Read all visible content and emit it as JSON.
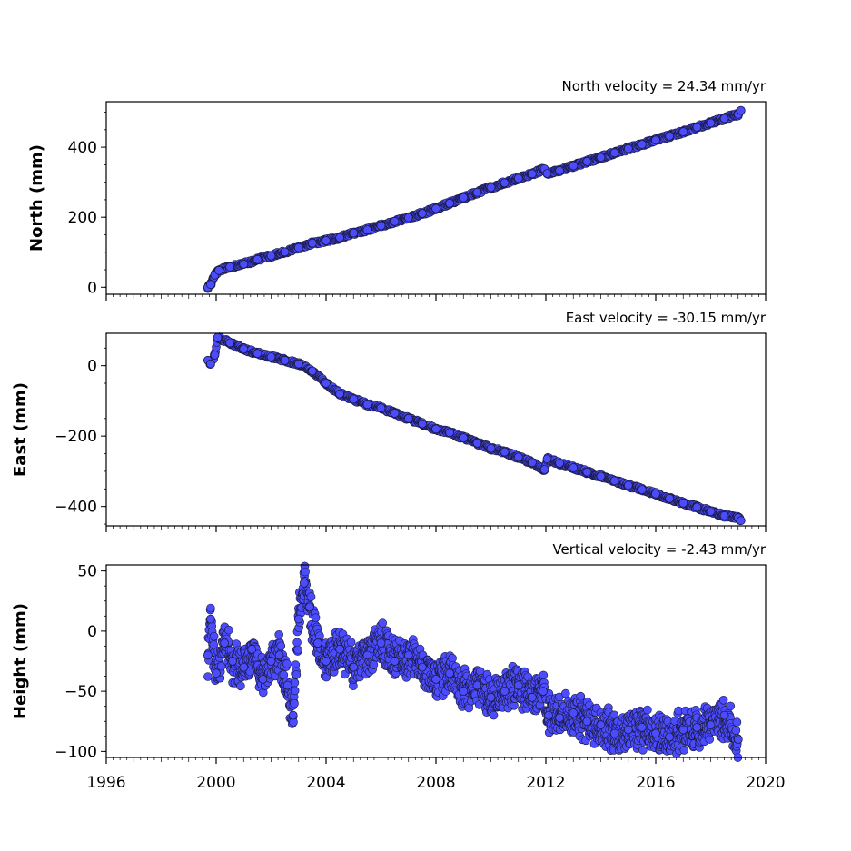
{
  "chart_data": [
    {
      "type": "scatter",
      "title": "North velocity = 24.34 mm/yr",
      "xlabel": "",
      "ylabel": "North (mm)",
      "xlim": [
        1996,
        2020
      ],
      "ylim": [
        -20,
        530
      ],
      "yticks": [
        0,
        200,
        400
      ],
      "ytick_labels": [
        "0",
        "200",
        "400"
      ],
      "color": "#4c4cff",
      "edge_color": "#1a1a40",
      "series": [
        {
          "values": [
            [
              1999.7,
              0
            ],
            [
              1999.8,
              8
            ],
            [
              1999.95,
              35
            ],
            [
              2000.1,
              48
            ],
            [
              2000.5,
              58
            ],
            [
              2001.0,
              66
            ],
            [
              2001.5,
              79
            ],
            [
              2002.0,
              90
            ],
            [
              2002.5,
              101
            ],
            [
              2003.0,
              113
            ],
            [
              2003.5,
              126
            ],
            [
              2004.0,
              133
            ],
            [
              2004.5,
              142
            ],
            [
              2005.0,
              155
            ],
            [
              2005.5,
              164
            ],
            [
              2006.0,
              176
            ],
            [
              2006.5,
              188
            ],
            [
              2007.0,
              199
            ],
            [
              2007.5,
              211
            ],
            [
              2008.0,
              225
            ],
            [
              2008.5,
              240
            ],
            [
              2009.0,
              256
            ],
            [
              2009.5,
              271
            ],
            [
              2010.0,
              285
            ],
            [
              2010.5,
              298
            ],
            [
              2011.0,
              311
            ],
            [
              2011.5,
              324
            ],
            [
              2011.95,
              338
            ],
            [
              2012.05,
              325
            ],
            [
              2012.5,
              333
            ],
            [
              2013.0,
              347
            ],
            [
              2013.5,
              359
            ],
            [
              2014.0,
              371
            ],
            [
              2014.5,
              384
            ],
            [
              2015.0,
              396
            ],
            [
              2015.5,
              408
            ],
            [
              2016.0,
              420
            ],
            [
              2016.5,
              432
            ],
            [
              2017.0,
              444
            ],
            [
              2017.5,
              457
            ],
            [
              2018.0,
              469
            ],
            [
              2018.5,
              482
            ],
            [
              2019.0,
              494
            ],
            [
              2019.1,
              505
            ]
          ]
        }
      ]
    },
    {
      "type": "scatter",
      "title": "East velocity = -30.15 mm/yr",
      "xlabel": "",
      "ylabel": "East (mm)",
      "xlim": [
        1996,
        2020
      ],
      "ylim": [
        -455,
        92
      ],
      "yticks": [
        -400,
        -200,
        0
      ],
      "ytick_labels": [
        "−400",
        "−200",
        "0"
      ],
      "color": "#4c4cff",
      "edge_color": "#1a1a40",
      "series": [
        {
          "values": [
            [
              1999.7,
              15
            ],
            [
              1999.8,
              5
            ],
            [
              1999.95,
              30
            ],
            [
              2000.05,
              80
            ],
            [
              2000.5,
              65
            ],
            [
              2001.0,
              47
            ],
            [
              2001.5,
              35
            ],
            [
              2002.0,
              25
            ],
            [
              2002.5,
              15
            ],
            [
              2003.0,
              5
            ],
            [
              2003.5,
              -15
            ],
            [
              2004.0,
              -50
            ],
            [
              2004.5,
              -80
            ],
            [
              2005.0,
              -95
            ],
            [
              2005.5,
              -110
            ],
            [
              2006.0,
              -120
            ],
            [
              2006.5,
              -135
            ],
            [
              2007.0,
              -150
            ],
            [
              2007.5,
              -165
            ],
            [
              2008.0,
              -180
            ],
            [
              2008.5,
              -190
            ],
            [
              2009.0,
              -205
            ],
            [
              2009.5,
              -220
            ],
            [
              2010.0,
              -235
            ],
            [
              2010.5,
              -245
            ],
            [
              2011.0,
              -260
            ],
            [
              2011.5,
              -275
            ],
            [
              2011.95,
              -295
            ],
            [
              2012.05,
              -265
            ],
            [
              2012.5,
              -277
            ],
            [
              2013.0,
              -290
            ],
            [
              2013.5,
              -302
            ],
            [
              2014.0,
              -314
            ],
            [
              2014.5,
              -327
            ],
            [
              2015.0,
              -340
            ],
            [
              2015.5,
              -352
            ],
            [
              2016.0,
              -364
            ],
            [
              2016.5,
              -377
            ],
            [
              2017.0,
              -390
            ],
            [
              2017.5,
              -402
            ],
            [
              2018.0,
              -414
            ],
            [
              2018.5,
              -426
            ],
            [
              2019.0,
              -432
            ],
            [
              2019.1,
              -440
            ]
          ]
        }
      ]
    },
    {
      "type": "scatter",
      "title": "Vertical velocity = -2.43 mm/yr",
      "xlabel": "",
      "ylabel": "Height (mm)",
      "xlim": [
        1996,
        2020
      ],
      "ylim": [
        -105,
        55
      ],
      "yticks": [
        -100,
        -50,
        0,
        50
      ],
      "ytick_labels": [
        "−100",
        "−50",
        "0",
        "50"
      ],
      "xticks": [
        1996,
        2000,
        2004,
        2008,
        2012,
        2016,
        2020
      ],
      "xtick_labels": [
        "1996",
        "2000",
        "2004",
        "2008",
        "2012",
        "2016",
        "2020"
      ],
      "color": "#4c4cff",
      "edge_color": "#1a1a40",
      "series": [
        {
          "values": [
            [
              1999.7,
              -20
            ],
            [
              1999.8,
              10
            ],
            [
              2000.0,
              -35
            ],
            [
              2000.3,
              -10
            ],
            [
              2000.6,
              -25
            ],
            [
              2001.0,
              -30
            ],
            [
              2001.3,
              -15
            ],
            [
              2001.7,
              -40
            ],
            [
              2002.0,
              -25
            ],
            [
              2002.3,
              -20
            ],
            [
              2002.6,
              -45
            ],
            [
              2002.8,
              -70
            ],
            [
              2003.0,
              10
            ],
            [
              2003.2,
              40
            ],
            [
              2003.4,
              20
            ],
            [
              2003.7,
              -10
            ],
            [
              2004.0,
              -25
            ],
            [
              2004.5,
              -15
            ],
            [
              2005.0,
              -30
            ],
            [
              2005.5,
              -20
            ],
            [
              2006.0,
              -10
            ],
            [
              2006.5,
              -25
            ],
            [
              2007.0,
              -20
            ],
            [
              2007.5,
              -30
            ],
            [
              2008.0,
              -40
            ],
            [
              2008.5,
              -35
            ],
            [
              2009.0,
              -50
            ],
            [
              2009.5,
              -45
            ],
            [
              2010.0,
              -55
            ],
            [
              2010.5,
              -50
            ],
            [
              2011.0,
              -45
            ],
            [
              2011.5,
              -55
            ],
            [
              2011.9,
              -50
            ],
            [
              2012.1,
              -70
            ],
            [
              2012.5,
              -72
            ],
            [
              2013.0,
              -68
            ],
            [
              2013.5,
              -75
            ],
            [
              2014.0,
              -78
            ],
            [
              2014.5,
              -85
            ],
            [
              2015.0,
              -82
            ],
            [
              2015.5,
              -80
            ],
            [
              2016.0,
              -85
            ],
            [
              2016.5,
              -88
            ],
            [
              2017.0,
              -82
            ],
            [
              2017.5,
              -80
            ],
            [
              2018.0,
              -78
            ],
            [
              2018.5,
              -70
            ],
            [
              2019.0,
              -90
            ]
          ]
        }
      ]
    }
  ]
}
